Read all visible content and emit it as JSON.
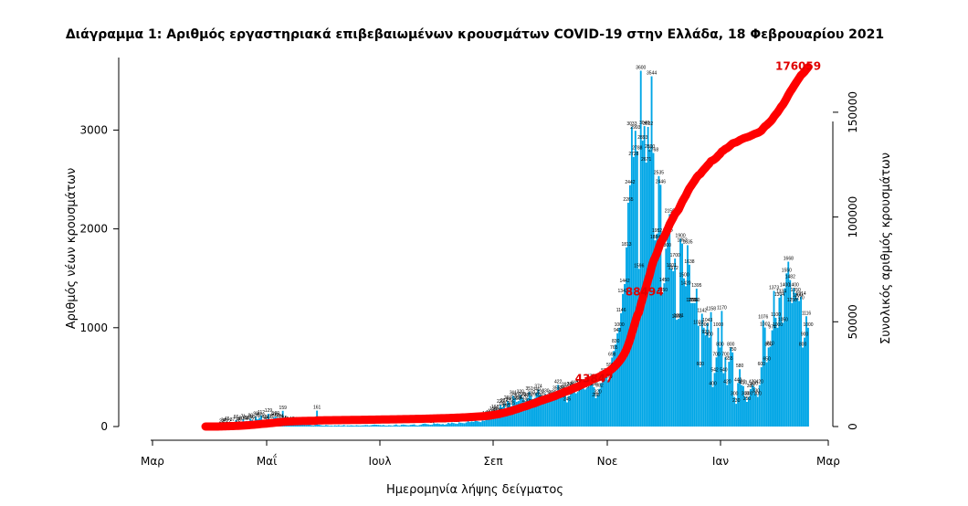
{
  "chart_data": {
    "type": "bar",
    "title": "Διάγραμμα 1: Αριθμός εργαστηριακά επιβεβαιωμένων κρουσμάτων COVID-19 στην Ελλάδα, 18 Φεβρουαρίου 2021",
    "xlabel": "Ημερομηνία λήψης δείγματος",
    "ylabel": "Αριθμός νέων κρουσμάτων",
    "y2label": "Συνολικός αριθμός κρουσμάτων",
    "x_ticks": [
      "Μαρ",
      "Μαΐ",
      "Ιουλ",
      "Σεπ",
      "Νοε",
      "Ιαν",
      "Μαρ"
    ],
    "y_ticks": [
      "0",
      "1000",
      "2000",
      "3000"
    ],
    "y2_ticks": [
      "0",
      "50000",
      "100000",
      "150000"
    ],
    "ylim": [
      0,
      3850
    ],
    "y2lim": [
      0,
      182000
    ],
    "x_range_days": [
      0,
      368
    ],
    "colors": {
      "bars": "#00a6e6",
      "cumulative": "#ff0000",
      "cumulative_label": "#e00000"
    },
    "cumulative_labels": [
      {
        "day": 249,
        "text": "43847"
      },
      {
        "day": 277,
        "text": "88494"
      },
      {
        "day": 364,
        "text": "176059"
      }
    ],
    "daily_new_cases": [
      1,
      0,
      2,
      4,
      0,
      7,
      3,
      9,
      17,
      23,
      34,
      21,
      45,
      22,
      15,
      37,
      12,
      66,
      32,
      40,
      50,
      71,
      52,
      56,
      47,
      80,
      66,
      51,
      98,
      73,
      87,
      112,
      70,
      63,
      45,
      129,
      65,
      75,
      91,
      100,
      85,
      63,
      74,
      159,
      55,
      45,
      33,
      38,
      48,
      35,
      40,
      25,
      20,
      32,
      28,
      18,
      15,
      22,
      20,
      12,
      10,
      16,
      161,
      18,
      14,
      10,
      9,
      15,
      12,
      8,
      10,
      7,
      12,
      9,
      13,
      8,
      10,
      15,
      6,
      11,
      9,
      12,
      10,
      8,
      13,
      10,
      9,
      11,
      12,
      15,
      14,
      10,
      13,
      17,
      20,
      18,
      16,
      14,
      12,
      15,
      10,
      9,
      13,
      11,
      8,
      15,
      21,
      12,
      10,
      18,
      20,
      17,
      14,
      12,
      16,
      19,
      22,
      13,
      10,
      15,
      20,
      28,
      30,
      25,
      22,
      18,
      20,
      33,
      27,
      30,
      26,
      22,
      25,
      19,
      24,
      36,
      31,
      40,
      35,
      30,
      28,
      42,
      38,
      35,
      33,
      41,
      56,
      45,
      52,
      48,
      60,
      55,
      50,
      45,
      62,
      58,
      100,
      82,
      110,
      125,
      150,
      168,
      136,
      130,
      220,
      196,
      232,
      180,
      260,
      240,
      205,
      311,
      290,
      250,
      258,
      320,
      296,
      270,
      230,
      285,
      351,
      310,
      220,
      290,
      340,
      374,
      320,
      282,
      260,
      330,
      244,
      260,
      300,
      315,
      273,
      355,
      422,
      304,
      356,
      360,
      392,
      245,
      308,
      396,
      380,
      410,
      336,
      350,
      427,
      389,
      416,
      375,
      391,
      404,
      478,
      450,
      398,
      288,
      320,
      382,
      440,
      505,
      534,
      510,
      470,
      590,
      698,
      765,
      830,
      943,
      1000,
      1146,
      1342,
      1442,
      1813,
      2265,
      2442,
      3033,
      2728,
      2993,
      2788,
      1596,
      3600,
      2893,
      3040,
      2671,
      3032,
      2800,
      3544,
      2768,
      1884,
      1952,
      2535,
      2446,
      1350,
      1450,
      1800,
      1955,
      2150,
      1601,
      1572,
      1700,
      1080,
      1091,
      1900,
      1852,
      1500,
      1420,
      1835,
      1638,
      1250,
      1250,
      1250,
      1395,
      1020,
      600,
      1142,
      1000,
      923,
      1043,
      900,
      1158,
      400,
      542,
      700,
      1000,
      800,
      1170,
      540,
      700,
      420,
      655,
      800,
      750,
      300,
      230,
      440,
      580,
      420,
      410,
      300,
      250,
      300,
      380,
      420,
      400,
      330,
      300,
      420,
      600,
      1076,
      1002,
      650,
      800,
      810,
      974,
      1373,
      1100,
      1000,
      1304,
      1334,
      1050,
      1400,
      1550,
      1668,
      1482,
      1250,
      1400,
      1350,
      1300,
      1270,
      1314,
      800,
      900,
      1116,
      1000
    ]
  }
}
